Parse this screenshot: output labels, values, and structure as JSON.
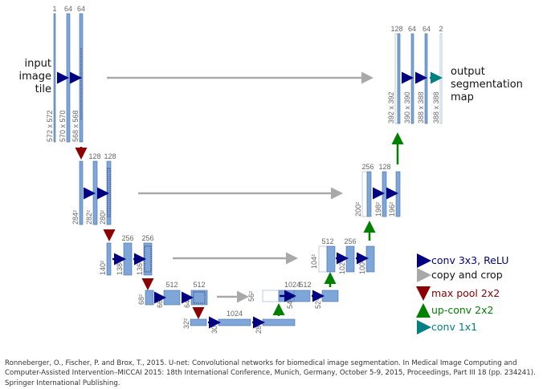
{
  "diagram": {
    "input_label": [
      "input",
      "image",
      "tile"
    ],
    "output_label": [
      "output",
      "segmentation",
      "map"
    ],
    "channel_labels": {
      "l1_in": "1",
      "l1_a": "64",
      "l1_b": "64",
      "l2_a": "128",
      "l2_b": "128",
      "l3_a": "256",
      "l3_b": "256",
      "l4_a": "512",
      "l4_b": "512",
      "l5_a": "1024",
      "u4_a": "1024",
      "u4_b": "512",
      "u3_a": "512",
      "u3_b": "256",
      "u2_a": "256",
      "u2_b": "128",
      "u1_a": "128",
      "u1_b": "64",
      "u1_c": "64",
      "u1_out": "2"
    },
    "size_labels": {
      "l1_0": "572 x 572",
      "l1_1": "570 x 570",
      "l1_2": "568 x 568",
      "l2_0": "284²",
      "l2_1": "282²",
      "l2_2": "280²",
      "l3_0": "140²",
      "l3_1": "138²",
      "l3_2": "136²",
      "l4_0": "68²",
      "l4_1": "66²",
      "l4_2": "64²",
      "l5_0": "32²",
      "l5_1": "30²",
      "l5_2": "28²",
      "u4_0": "56²",
      "u4_1": "54²",
      "u4_2": "52²",
      "u3_0": "104²",
      "u3_1": "102²",
      "u3_2": "100²",
      "u2_0": "200²",
      "u2_1": "198²",
      "u2_2": "196²",
      "u1_0": "392 x 392",
      "u1_1": "390 x 390",
      "u1_2": "388 x 388",
      "u1_3": "388 x 388"
    },
    "legend": [
      {
        "label": "conv 3x3, ReLU",
        "color": "#000080",
        "text_color": "#000080",
        "direction": "right"
      },
      {
        "label": "copy and crop",
        "color": "#a9a9a9",
        "text_color": "#111111",
        "direction": "right"
      },
      {
        "label": "max pool 2x2",
        "color": "#8b0000",
        "text_color": "#8b0000",
        "direction": "down"
      },
      {
        "label": "up-conv 2x2",
        "color": "#008000",
        "text_color": "#008000",
        "direction": "up"
      },
      {
        "label": "conv 1x1",
        "color": "#008080",
        "text_color": "#008080",
        "direction": "right"
      }
    ],
    "colors": {
      "block": "#7ea6d8",
      "block_edge": "#4a6fa8",
      "conv": "#000080",
      "copy": "#a9a9a9",
      "pool": "#8b0000",
      "up": "#008000",
      "out": "#008080"
    }
  },
  "caption": "Ronneberger, O., Fischer, P. and Brox, T., 2015. U-net: Convolutional networks for biomedical image segmentation. In Medical Image Computing and Computer-Assisted Intervention–MICCAI 2015: 18th International Conference, Munich, Germany, October 5-9, 2015, Proceedings, Part III 18 (pp. 234241). Springer International Publishing."
}
